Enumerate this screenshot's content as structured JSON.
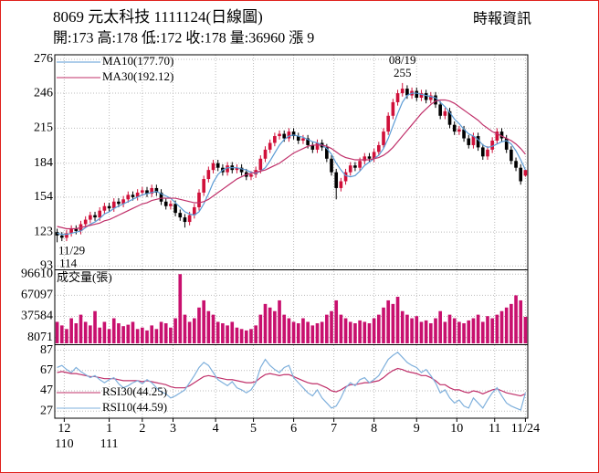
{
  "header": {
    "title": "8069  元太科技 1111124(日線圖)",
    "subtitle": "開:173 高:178 低:172 收:178 量:36960 漲 9",
    "source": "時報資訊"
  },
  "chart_data": [
    {
      "type": "candlestick",
      "up_color": "#d0103a",
      "down_color": "#000000",
      "grid": true,
      "ylim": [
        90,
        280
      ],
      "yticks": [
        276,
        246,
        215,
        184,
        154,
        123,
        93
      ],
      "candles": [
        [
          123,
          126,
          114,
          120
        ],
        [
          120,
          123,
          115,
          118
        ],
        [
          118,
          125,
          115,
          122
        ],
        [
          122,
          129,
          119,
          126
        ],
        [
          126,
          129,
          121,
          124
        ],
        [
          124,
          133,
          121,
          130
        ],
        [
          130,
          137,
          127,
          134
        ],
        [
          134,
          141,
          131,
          138
        ],
        [
          138,
          141,
          133,
          136
        ],
        [
          136,
          145,
          133,
          142
        ],
        [
          142,
          149,
          139,
          146
        ],
        [
          146,
          149,
          141,
          144
        ],
        [
          144,
          153,
          141,
          150
        ],
        [
          150,
          153,
          145,
          148
        ],
        [
          148,
          155,
          145,
          152
        ],
        [
          152,
          159,
          149,
          156
        ],
        [
          156,
          159,
          151,
          154
        ],
        [
          154,
          161,
          151,
          158
        ],
        [
          158,
          163,
          155,
          160
        ],
        [
          160,
          163,
          154,
          157
        ],
        [
          157,
          165,
          154,
          162
        ],
        [
          162,
          165,
          155,
          158
        ],
        [
          158,
          161,
          147,
          150
        ],
        [
          150,
          153,
          143,
          146
        ],
        [
          146,
          151,
          143,
          148
        ],
        [
          148,
          151,
          137,
          140
        ],
        [
          140,
          143,
          133,
          136
        ],
        [
          136,
          139,
          127,
          132
        ],
        [
          132,
          141,
          129,
          138
        ],
        [
          138,
          148,
          135,
          145
        ],
        [
          145,
          161,
          142,
          158
        ],
        [
          158,
          173,
          155,
          170
        ],
        [
          170,
          181,
          167,
          178
        ],
        [
          178,
          187,
          175,
          184
        ],
        [
          184,
          187,
          177,
          180
        ],
        [
          180,
          183,
          173,
          176
        ],
        [
          176,
          185,
          173,
          182
        ],
        [
          182,
          185,
          175,
          178
        ],
        [
          178,
          183,
          175,
          180
        ],
        [
          180,
          183,
          173,
          176
        ],
        [
          176,
          179,
          169,
          172
        ],
        [
          172,
          177,
          169,
          174
        ],
        [
          174,
          181,
          171,
          178
        ],
        [
          178,
          191,
          175,
          188
        ],
        [
          188,
          199,
          185,
          196
        ],
        [
          196,
          205,
          193,
          202
        ],
        [
          202,
          211,
          199,
          208
        ],
        [
          208,
          213,
          205,
          210
        ],
        [
          210,
          213,
          203,
          206
        ],
        [
          206,
          215,
          203,
          212
        ],
        [
          212,
          215,
          205,
          208
        ],
        [
          208,
          211,
          201,
          204
        ],
        [
          204,
          209,
          201,
          206
        ],
        [
          206,
          209,
          197,
          200
        ],
        [
          200,
          203,
          193,
          196
        ],
        [
          196,
          205,
          193,
          202
        ],
        [
          202,
          205,
          195,
          198
        ],
        [
          198,
          201,
          185,
          188
        ],
        [
          188,
          191,
          173,
          176
        ],
        [
          176,
          179,
          152,
          162
        ],
        [
          162,
          171,
          159,
          168
        ],
        [
          168,
          179,
          165,
          176
        ],
        [
          176,
          185,
          173,
          182
        ],
        [
          182,
          185,
          177,
          180
        ],
        [
          180,
          189,
          177,
          186
        ],
        [
          186,
          193,
          183,
          190
        ],
        [
          190,
          193,
          185,
          188
        ],
        [
          188,
          197,
          185,
          194
        ],
        [
          194,
          203,
          191,
          200
        ],
        [
          200,
          215,
          197,
          212
        ],
        [
          212,
          229,
          209,
          226
        ],
        [
          226,
          241,
          223,
          238
        ],
        [
          238,
          249,
          235,
          246
        ],
        [
          246,
          255,
          243,
          250
        ],
        [
          250,
          253,
          241,
          244
        ],
        [
          244,
          251,
          241,
          248
        ],
        [
          248,
          251,
          239,
          242
        ],
        [
          242,
          249,
          239,
          246
        ],
        [
          246,
          249,
          237,
          240
        ],
        [
          240,
          247,
          237,
          244
        ],
        [
          244,
          247,
          233,
          236
        ],
        [
          236,
          239,
          223,
          226
        ],
        [
          226,
          233,
          223,
          230
        ],
        [
          230,
          233,
          215,
          218
        ],
        [
          218,
          221,
          209,
          212
        ],
        [
          212,
          217,
          209,
          214
        ],
        [
          214,
          217,
          203,
          206
        ],
        [
          206,
          209,
          197,
          200
        ],
        [
          200,
          211,
          197,
          208
        ],
        [
          208,
          211,
          195,
          198
        ],
        [
          198,
          201,
          187,
          190
        ],
        [
          190,
          199,
          187,
          196
        ],
        [
          196,
          207,
          193,
          204
        ],
        [
          204,
          215,
          201,
          212
        ],
        [
          212,
          215,
          203,
          206
        ],
        [
          206,
          209,
          193,
          196
        ],
        [
          196,
          199,
          183,
          186
        ],
        [
          186,
          189,
          177,
          180
        ],
        [
          180,
          183,
          165,
          168
        ],
        [
          173,
          178,
          172,
          178
        ]
      ],
      "series": [
        {
          "name": "MA10(177.70)",
          "color": "#5b9bd5",
          "values": [
            122,
            121,
            121,
            122,
            123,
            124,
            127,
            130,
            132,
            135,
            139,
            141,
            144,
            146,
            148,
            150,
            152,
            154,
            156,
            157,
            158,
            159,
            157,
            155,
            153,
            149,
            145,
            141,
            139,
            138,
            141,
            148,
            157,
            167,
            174,
            178,
            180,
            180,
            180,
            179,
            178,
            176,
            175,
            177,
            180,
            186,
            193,
            200,
            205,
            208,
            209,
            208,
            207,
            205,
            203,
            202,
            200,
            197,
            192,
            184,
            178,
            173,
            172,
            173,
            177,
            182,
            185,
            188,
            191,
            197,
            206,
            217,
            228,
            238,
            244,
            246,
            246,
            245,
            244,
            243,
            242,
            238,
            234,
            229,
            223,
            219,
            214,
            210,
            208,
            205,
            200,
            198,
            199,
            201,
            203,
            204,
            201,
            195,
            187,
            178
          ]
        },
        {
          "name": "MA30(192.12)",
          "color": "#c0306a",
          "values": [
            128,
            127,
            126,
            126,
            126,
            127,
            128,
            129,
            130,
            131,
            133,
            134,
            136,
            138,
            140,
            142,
            144,
            146,
            148,
            149,
            151,
            152,
            153,
            153,
            153,
            153,
            152,
            151,
            150,
            149,
            149,
            150,
            152,
            155,
            158,
            161,
            164,
            167,
            170,
            172,
            174,
            175,
            176,
            177,
            178,
            180,
            182,
            184,
            187,
            190,
            193,
            195,
            197,
            199,
            200,
            200,
            200,
            199,
            197,
            194,
            191,
            189,
            188,
            187,
            187,
            187,
            187,
            188,
            189,
            191,
            194,
            198,
            203,
            208,
            213,
            218,
            223,
            228,
            232,
            236,
            239,
            240,
            240,
            239,
            237,
            234,
            231,
            228,
            225,
            222,
            218,
            215,
            212,
            210,
            208,
            206,
            204,
            201,
            197,
            192
          ]
        }
      ],
      "annotations": [
        {
          "date": "08/19",
          "value": 255
        },
        {
          "date": "11/29",
          "value": 114
        }
      ]
    },
    {
      "type": "bar",
      "title": "成交量(張)",
      "color": "#c8106e",
      "grid": true,
      "ylim": [
        0,
        102000
      ],
      "yticks": [
        96610,
        67097,
        37584,
        8071
      ],
      "values": [
        30000,
        25000,
        20000,
        35000,
        28000,
        40000,
        30000,
        25000,
        45000,
        22000,
        30000,
        20000,
        35000,
        28000,
        24000,
        26000,
        30000,
        20000,
        22000,
        18000,
        25000,
        20000,
        30000,
        28000,
        22000,
        35000,
        96610,
        40000,
        30000,
        35000,
        50000,
        60000,
        45000,
        40000,
        30000,
        28000,
        25000,
        30000,
        22000,
        20000,
        18000,
        20000,
        25000,
        40000,
        55000,
        50000,
        45000,
        60000,
        40000,
        35000,
        30000,
        28000,
        35000,
        30000,
        25000,
        28000,
        30000,
        40000,
        45000,
        60000,
        40000,
        35000,
        30000,
        28000,
        32000,
        30000,
        28000,
        35000,
        40000,
        50000,
        60000,
        55000,
        65000,
        45000,
        40000,
        35000,
        38000,
        30000,
        32000,
        28000,
        35000,
        45000,
        30000,
        40000,
        35000,
        30000,
        28000,
        32000,
        35000,
        40000,
        30000,
        38000,
        35000,
        40000,
        45000,
        50000,
        55000,
        67000,
        60000,
        36960
      ]
    },
    {
      "type": "line",
      "grid": true,
      "ylim": [
        20,
        92
      ],
      "yticks": [
        87,
        67,
        47,
        27
      ],
      "series": [
        {
          "name": "RSI30(44.25)",
          "color": "#c0306a",
          "values": [
            65,
            66,
            65,
            64,
            64,
            63,
            62,
            61,
            61,
            60,
            59,
            59,
            59,
            58,
            57,
            57,
            57,
            57,
            56,
            57,
            56,
            55,
            54,
            53,
            51,
            50,
            50,
            50,
            52,
            55,
            58,
            61,
            62,
            61,
            60,
            59,
            58,
            58,
            57,
            56,
            55,
            55,
            56,
            60,
            63,
            64,
            63,
            62,
            63,
            63,
            61,
            59,
            57,
            55,
            54,
            54,
            52,
            50,
            47,
            46,
            48,
            51,
            53,
            53,
            54,
            55,
            55,
            56,
            57,
            60,
            64,
            67,
            69,
            68,
            66,
            65,
            64,
            62,
            62,
            60,
            57,
            53,
            53,
            50,
            48,
            48,
            46,
            45,
            47,
            46,
            44,
            46,
            48,
            49,
            47,
            45,
            44,
            43,
            42,
            44
          ]
        },
        {
          "name": "RSI10(44.59)",
          "color": "#7fb0dc",
          "values": [
            70,
            72,
            68,
            65,
            70,
            66,
            63,
            60,
            62,
            58,
            55,
            58,
            60,
            54,
            50,
            52,
            55,
            57,
            54,
            58,
            55,
            50,
            46,
            44,
            40,
            42,
            45,
            48,
            55,
            62,
            70,
            75,
            72,
            65,
            58,
            55,
            52,
            56,
            50,
            48,
            45,
            48,
            55,
            70,
            78,
            72,
            68,
            65,
            70,
            72,
            60,
            55,
            50,
            45,
            42,
            48,
            40,
            35,
            30,
            32,
            40,
            50,
            55,
            52,
            58,
            60,
            55,
            58,
            62,
            70,
            78,
            82,
            85,
            80,
            75,
            72,
            70,
            65,
            68,
            62,
            55,
            45,
            48,
            40,
            35,
            38,
            32,
            30,
            40,
            35,
            30,
            38,
            45,
            50,
            42,
            35,
            32,
            30,
            28,
            45
          ]
        }
      ],
      "xticks": [
        {
          "value": 1.5,
          "label": "12"
        },
        {
          "value": 11,
          "label": "1"
        },
        {
          "value": 18,
          "label": "2"
        },
        {
          "value": 24.5,
          "label": "3"
        },
        {
          "value": 33.5,
          "label": "4"
        },
        {
          "value": 41.5,
          "label": "5"
        },
        {
          "value": 50,
          "label": "6"
        },
        {
          "value": 58.5,
          "label": "7"
        },
        {
          "value": 67,
          "label": "8"
        },
        {
          "value": 76,
          "label": "9"
        },
        {
          "value": 84.5,
          "label": "10"
        },
        {
          "value": 92.5,
          "label": "11"
        },
        {
          "value": 99,
          "label": "11/24"
        }
      ],
      "year_ticks": [
        {
          "value": 1.5,
          "label": "110"
        },
        {
          "value": 11,
          "label": "111"
        }
      ]
    }
  ]
}
